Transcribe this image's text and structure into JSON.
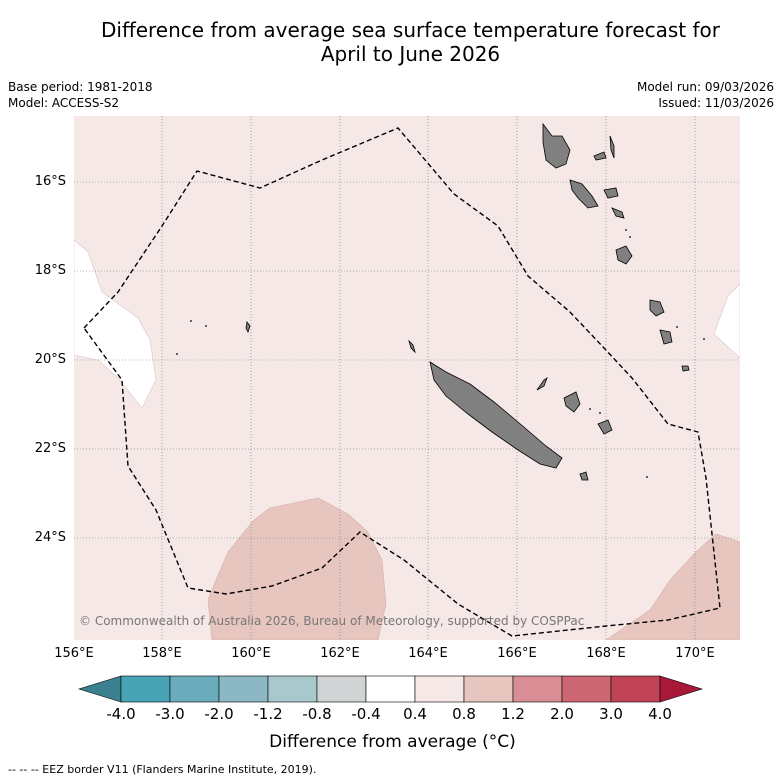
{
  "title_line1": "Difference from average sea surface temperature forecast for",
  "title_line2": "April to June 2026",
  "base_period": "Base period: 1981-2018",
  "model": "Model: ACCESS-S2",
  "model_run": "Model run: 09/03/2026",
  "issued": "Issued: 11/03/2026",
  "lat_labels": [
    "16°S",
    "18°S",
    "20°S",
    "22°S",
    "24°S"
  ],
  "lon_labels": [
    "156°E",
    "158°E",
    "160°E",
    "162°E",
    "164°E",
    "166°E",
    "168°E",
    "170°E"
  ],
  "copyright": "© Commonwealth of Australia 2026, Bureau of Meteorology, supported by COSPPac",
  "colorbar": {
    "labels": [
      "-4.0",
      "-3.0",
      "-2.0",
      "-1.2",
      "-0.8",
      "-0.4",
      "0.4",
      "0.8",
      "1.2",
      "2.0",
      "3.0",
      "4.0"
    ],
    "colors": [
      "#3a8090",
      "#48a4b4",
      "#6aacbc",
      "#8cb8c4",
      "#a8c8cc",
      "#d0d4d4",
      "#ffffff",
      "#f5e8e6",
      "#e8c6c0",
      "#d88e94",
      "#cc6672",
      "#c04456",
      "#a81838"
    ],
    "title": "Difference from average (°C)"
  },
  "legend_footer": "--  --  -- EEZ border V11 (Flanders Marine Institute, 2019)."
}
